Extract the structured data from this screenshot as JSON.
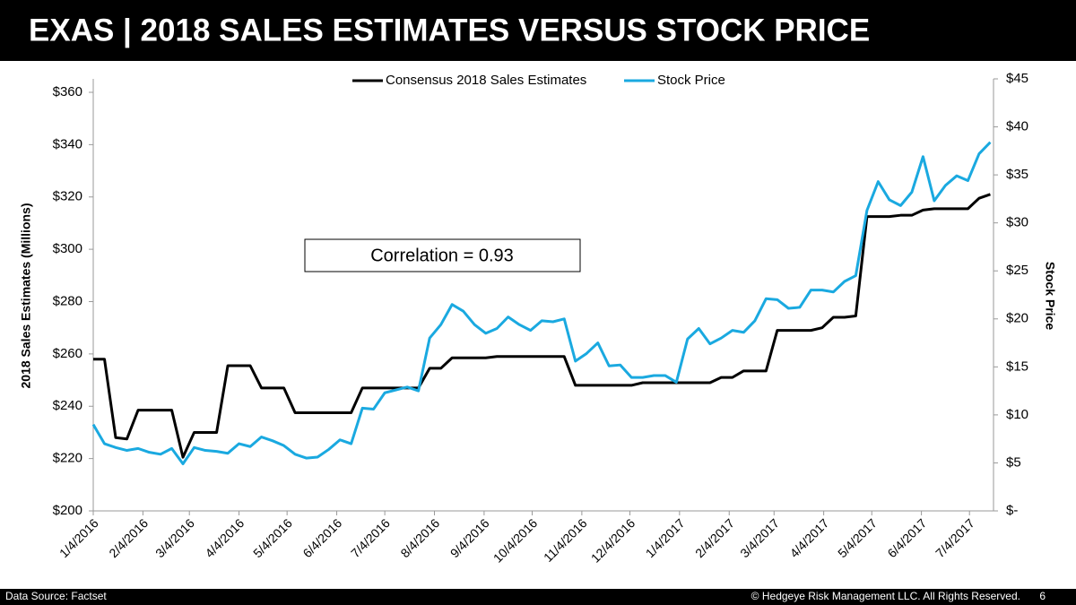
{
  "chart_data": {
    "type": "line",
    "title": "EXAS | 2018 SALES ESTIMATES VERSUS STOCK PRICE",
    "y_label": "2018 Sales Estimates (Millions)",
    "y2_label": "Stock Price",
    "annotation": "Correlation = 0.93",
    "legend": "top",
    "x": [
      "1/4/2016",
      "1/11/2016",
      "1/18/2016",
      "1/25/2016",
      "2/1/2016",
      "2/8/2016",
      "2/15/2016",
      "2/22/2016",
      "2/29/2016",
      "3/7/2016",
      "3/14/2016",
      "3/21/2016",
      "3/28/2016",
      "4/4/2016",
      "4/11/2016",
      "4/18/2016",
      "4/25/2016",
      "5/2/2016",
      "5/9/2016",
      "5/16/2016",
      "5/23/2016",
      "5/30/2016",
      "6/6/2016",
      "6/13/2016",
      "6/20/2016",
      "6/27/2016",
      "7/4/2016",
      "7/11/2016",
      "7/18/2016",
      "7/25/2016",
      "8/1/2016",
      "8/8/2016",
      "8/15/2016",
      "8/22/2016",
      "8/29/2016",
      "9/5/2016",
      "9/12/2016",
      "9/19/2016",
      "9/26/2016",
      "10/3/2016",
      "10/10/2016",
      "10/17/2016",
      "10/24/2016",
      "10/31/2016",
      "11/7/2016",
      "11/14/2016",
      "11/21/2016",
      "11/28/2016",
      "12/5/2016",
      "12/12/2016",
      "12/19/2016",
      "12/26/2016",
      "1/2/2017",
      "1/9/2017",
      "1/16/2017",
      "1/23/2017",
      "1/30/2017",
      "2/6/2017",
      "2/13/2017",
      "2/20/2017",
      "2/27/2017",
      "3/6/2017",
      "3/13/2017",
      "3/20/2017",
      "3/27/2017",
      "4/3/2017",
      "4/10/2017",
      "4/17/2017",
      "4/24/2017",
      "5/1/2017",
      "5/8/2017",
      "5/15/2017",
      "5/22/2017",
      "5/29/2017",
      "6/5/2017",
      "6/12/2017",
      "6/19/2017",
      "6/26/2017",
      "7/3/2017",
      "7/10/2017",
      "7/17/2017"
    ],
    "series": [
      {
        "name": "Consensus 2018 Sales Estimates",
        "color": "#000000",
        "axis": "y",
        "values": [
          258,
          258,
          228,
          227.5,
          238.5,
          238.5,
          238.5,
          238.5,
          220.5,
          230,
          230,
          230,
          255.5,
          255.5,
          255.5,
          247,
          247,
          247,
          237.5,
          237.5,
          237.5,
          237.5,
          237.5,
          237.5,
          247,
          247,
          247,
          247,
          247,
          247,
          254.5,
          254.5,
          258.5,
          258.5,
          258.5,
          258.5,
          259,
          259,
          259,
          259,
          259,
          259,
          259,
          248,
          248,
          248,
          248,
          248,
          248,
          249,
          249,
          249,
          249,
          249,
          249,
          249,
          251,
          251,
          253.5,
          253.5,
          253.5,
          269,
          269,
          269,
          269,
          270,
          274,
          274,
          274.5,
          312.5,
          312.5,
          312.5,
          313,
          313,
          315,
          315.5,
          315.5,
          315.5,
          315.5,
          319.5,
          321
        ]
      },
      {
        "name": "Stock Price",
        "color": "#1aa9e0",
        "axis": "y2",
        "values": [
          9,
          7,
          6.6,
          6.3,
          6.5,
          6.1,
          5.9,
          6.5,
          4.9,
          6.6,
          6.3,
          6.2,
          6,
          7,
          6.7,
          7.7,
          7.3,
          6.8,
          5.9,
          5.5,
          5.6,
          6.4,
          7.4,
          7,
          10.7,
          10.6,
          12.3,
          12.6,
          12.9,
          12.5,
          18,
          19.4,
          21.5,
          20.8,
          19.4,
          18.5,
          19,
          20.2,
          19.4,
          18.8,
          19.8,
          19.7,
          20,
          15.6,
          16.4,
          17.5,
          15.1,
          15.2,
          13.9,
          13.9,
          14.1,
          14.1,
          13.4,
          17.9,
          19,
          17.4,
          18,
          18.8,
          18.6,
          19.8,
          22.1,
          22,
          21.1,
          21.2,
          23,
          23,
          22.8,
          23.9,
          24.5,
          31.3,
          34.3,
          32.4,
          31.8,
          33.2,
          36.9,
          32.3,
          33.9,
          34.9,
          34.4,
          37.2,
          38.4
        ]
      }
    ],
    "xlim": [
      "1/4/2016",
      "7/19/2017"
    ],
    "xticks": [
      "1/4/2016",
      "2/4/2016",
      "3/4/2016",
      "4/4/2016",
      "5/4/2016",
      "6/4/2016",
      "7/4/2016",
      "8/4/2016",
      "9/4/2016",
      "10/4/2016",
      "11/4/2016",
      "12/4/2016",
      "1/4/2017",
      "2/4/2017",
      "3/4/2017",
      "4/4/2017",
      "5/4/2017",
      "6/4/2017",
      "7/4/2017"
    ],
    "ylim": [
      200,
      360
    ],
    "yticks": [
      {
        "value": 200,
        "label": "$200"
      },
      {
        "value": 220,
        "label": "$220"
      },
      {
        "value": 240,
        "label": "$240"
      },
      {
        "value": 260,
        "label": "$260"
      },
      {
        "value": 280,
        "label": "$280"
      },
      {
        "value": 300,
        "label": "$300"
      },
      {
        "value": 320,
        "label": "$320"
      },
      {
        "value": 340,
        "label": "$340"
      },
      {
        "value": 360,
        "label": "$360"
      }
    ],
    "y2lim": [
      0,
      45
    ],
    "y2ticks": [
      {
        "value": 0,
        "label": "$-"
      },
      {
        "value": 5,
        "label": "$5"
      },
      {
        "value": 10,
        "label": "$10"
      },
      {
        "value": 15,
        "label": "$15"
      },
      {
        "value": 20,
        "label": "$20"
      },
      {
        "value": 25,
        "label": "$25"
      },
      {
        "value": 30,
        "label": "$30"
      },
      {
        "value": 35,
        "label": "$35"
      },
      {
        "value": 40,
        "label": "$40"
      },
      {
        "value": 45,
        "label": "$45"
      }
    ],
    "grid": false
  },
  "footer": {
    "source": "Data Source: Factset",
    "copyright": "© Hedgeye Risk Management LLC. All Rights Reserved.",
    "page": "6"
  }
}
